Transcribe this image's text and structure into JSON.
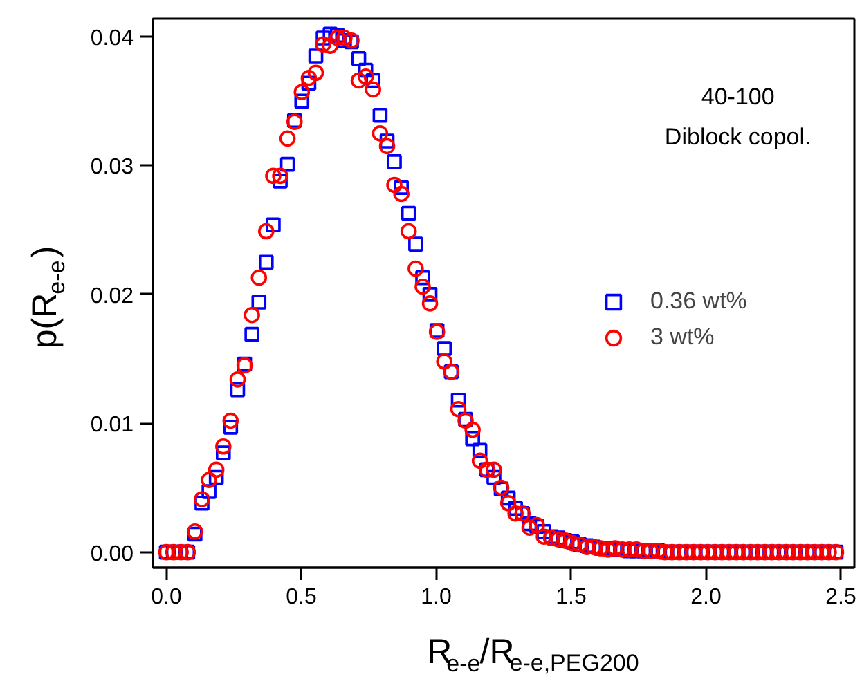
{
  "chart_data": {
    "type": "scatter",
    "xlabel": "R$_{e-e}$/R$_{e-e,PEG200}$",
    "ylabel": "p(R$_{e-e}$)",
    "annotations": [
      "40-100",
      "Diblock copol."
    ],
    "x": [
      0.0,
      0.026,
      0.053,
      0.079,
      0.106,
      0.132,
      0.158,
      0.185,
      0.211,
      0.238,
      0.264,
      0.29,
      0.317,
      0.343,
      0.37,
      0.396,
      0.422,
      0.449,
      0.475,
      0.502,
      0.528,
      0.554,
      0.581,
      0.607,
      0.634,
      0.66,
      0.686,
      0.713,
      0.739,
      0.766,
      0.792,
      0.818,
      0.845,
      0.871,
      0.898,
      0.924,
      0.95,
      0.977,
      1.003,
      1.03,
      1.056,
      1.082,
      1.109,
      1.135,
      1.162,
      1.188,
      1.214,
      1.241,
      1.267,
      1.294,
      1.32,
      1.346,
      1.373,
      1.399,
      1.426,
      1.452,
      1.478,
      1.505,
      1.531,
      1.558,
      1.584,
      1.61,
      1.637,
      1.663,
      1.69,
      1.716,
      1.742,
      1.769,
      1.795,
      1.822,
      1.848,
      1.874,
      1.901,
      1.927,
      1.954,
      1.98,
      2.006,
      2.033,
      2.059,
      2.086,
      2.112,
      2.138,
      2.165,
      2.191,
      2.218,
      2.244,
      2.27,
      2.297,
      2.323,
      2.35,
      2.376,
      2.402,
      2.429,
      2.455,
      2.482
    ],
    "series": [
      {
        "name": "0.36 wt%",
        "color": "#0000ff",
        "marker": "square",
        "values": [
          0,
          0,
          0,
          0,
          0.0014,
          0.0038,
          0.0047,
          0.0058,
          0.0077,
          0.0097,
          0.0126,
          0.0146,
          0.0169,
          0.0194,
          0.0225,
          0.0254,
          0.0288,
          0.0301,
          0.0335,
          0.035,
          0.0364,
          0.0385,
          0.0399,
          0.0402,
          0.0401,
          0.0397,
          0.0396,
          0.0383,
          0.0374,
          0.0366,
          0.0339,
          0.0319,
          0.0303,
          0.0283,
          0.0263,
          0.0239,
          0.0213,
          0.02,
          0.0172,
          0.0158,
          0.014,
          0.0118,
          0.0103,
          0.0088,
          0.0079,
          0.0064,
          0.0058,
          0.0049,
          0.0042,
          0.0034,
          0.003,
          0.0022,
          0.002,
          0.0016,
          0.0012,
          0.0011,
          0.0009,
          0.0008,
          0.0006,
          0.0005,
          0.0004,
          0.0003,
          0.0003,
          0.0002,
          0.0002,
          0.0001,
          0.0001,
          0.0001,
          0.0001,
          0.0001,
          0,
          0,
          0,
          0,
          0,
          0,
          0,
          0,
          0,
          0,
          0,
          0,
          0,
          0,
          0,
          0,
          0,
          0,
          0,
          0,
          0,
          0,
          0,
          0,
          0
        ]
      },
      {
        "name": "3 wt%",
        "color": "#ff0000",
        "marker": "circle",
        "values": [
          0,
          0,
          0,
          0,
          0.0016,
          0.0041,
          0.0056,
          0.0064,
          0.0082,
          0.0102,
          0.0134,
          0.0145,
          0.0184,
          0.0213,
          0.0249,
          0.0292,
          0.0292,
          0.0321,
          0.0334,
          0.0357,
          0.0368,
          0.0372,
          0.0394,
          0.0393,
          0.0399,
          0.0399,
          0.0397,
          0.0366,
          0.0369,
          0.0359,
          0.0325,
          0.0315,
          0.0285,
          0.0278,
          0.0249,
          0.022,
          0.0206,
          0.0193,
          0.0171,
          0.0148,
          0.014,
          0.0111,
          0.0102,
          0.0095,
          0.0071,
          0.0064,
          0.0064,
          0.005,
          0.0038,
          0.003,
          0.003,
          0.0019,
          0.0021,
          0.0012,
          0.0011,
          0.001,
          0.0009,
          0.0007,
          0.0006,
          0.0004,
          0.0004,
          0.0003,
          0.0002,
          0.0003,
          0.0002,
          0.0002,
          0.0002,
          0.0001,
          0.0001,
          0.0001,
          0,
          0,
          0,
          0,
          0,
          0,
          0,
          0,
          0,
          0,
          0,
          0,
          0,
          0,
          0,
          0,
          0,
          0,
          0,
          0,
          0,
          0,
          0,
          0,
          0
        ]
      }
    ],
    "xlim": [
      -0.05,
      2.55
    ],
    "ylim": [
      -0.0012,
      0.0414
    ],
    "xticks": [
      {
        "value": 0,
        "label": "0.0"
      },
      {
        "value": 0.5,
        "label": "0.5"
      },
      {
        "value": 1,
        "label": "1.0"
      },
      {
        "value": 1.5,
        "label": "1.5"
      },
      {
        "value": 2,
        "label": "2.0"
      },
      {
        "value": 2.5,
        "label": "2.5"
      }
    ],
    "yticks": [
      {
        "value": 0,
        "label": "0.00"
      },
      {
        "value": 0.01,
        "label": "0.01"
      },
      {
        "value": 0.02,
        "label": "0.02"
      },
      {
        "value": 0.03,
        "label": "0.03"
      },
      {
        "value": 0.04,
        "label": "0.04"
      }
    ],
    "grid": false,
    "legend": "right"
  }
}
